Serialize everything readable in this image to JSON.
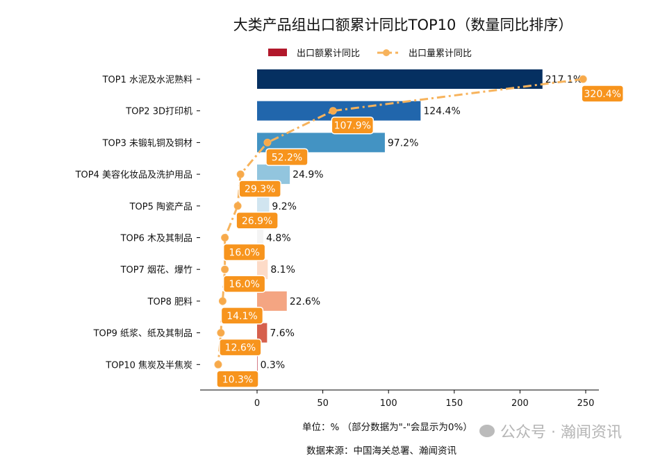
{
  "chart_data": {
    "type": "bar",
    "orientation": "horizontal",
    "title": "大类产品组出口额累计同比TOP10（数量同比排序）",
    "categories": [
      "TOP1 水泥及水泥熟料",
      "TOP2 3D打印机",
      "TOP3 未锻轧铜及铜材",
      "TOP4 美容化妆品及洗护用品",
      "TOP5 陶瓷产品",
      "TOP6 木及其制品",
      "TOP7 烟花、爆竹",
      "TOP8 肥料",
      "TOP9 纸浆、纸及其制品",
      "TOP10 焦炭及半焦炭"
    ],
    "series": [
      {
        "name": "出口额累计同比",
        "type": "bar",
        "values": [
          217.1,
          124.4,
          97.2,
          24.9,
          9.2,
          4.8,
          8.1,
          22.6,
          7.6,
          0.3
        ],
        "labels": [
          "217.1%",
          "124.4%",
          "97.2%",
          "24.9%",
          "9.2%",
          "4.8%",
          "8.1%",
          "22.6%",
          "7.6%",
          "0.3%"
        ]
      },
      {
        "name": "出口量累计同比",
        "type": "line",
        "values": [
          320.4,
          107.9,
          52.2,
          29.3,
          26.9,
          16.0,
          16.0,
          14.1,
          12.6,
          10.3
        ],
        "labels": [
          "320.4%",
          "107.9%",
          "52.2%",
          "29.3%",
          "26.9%",
          "16.0%",
          "16.0%",
          "14.1%",
          "12.6%",
          "10.3%"
        ]
      }
    ],
    "bar_colors": [
      "#053061",
      "#2166ac",
      "#4393c3",
      "#92c5de",
      "#d1e5f0",
      "#f4f4f4",
      "#fddbc7",
      "#f4a582",
      "#d6604d",
      "#b2182b"
    ],
    "legend_bar_color": "#b2182b",
    "line_color": "#f7b35c",
    "label_box_color": "#f7941d",
    "xticks": [
      "0",
      "50",
      "100",
      "150",
      "200",
      "250"
    ],
    "xlim": [
      -43,
      260
    ],
    "xlabel": "单位：%  （部分数据为\"-\"会显示为0%）",
    "grid": false,
    "legend_position": "top"
  },
  "source": "数据来源：中国海关总署、瀚闻资讯",
  "watermark": "公众号 · 瀚闻资讯"
}
